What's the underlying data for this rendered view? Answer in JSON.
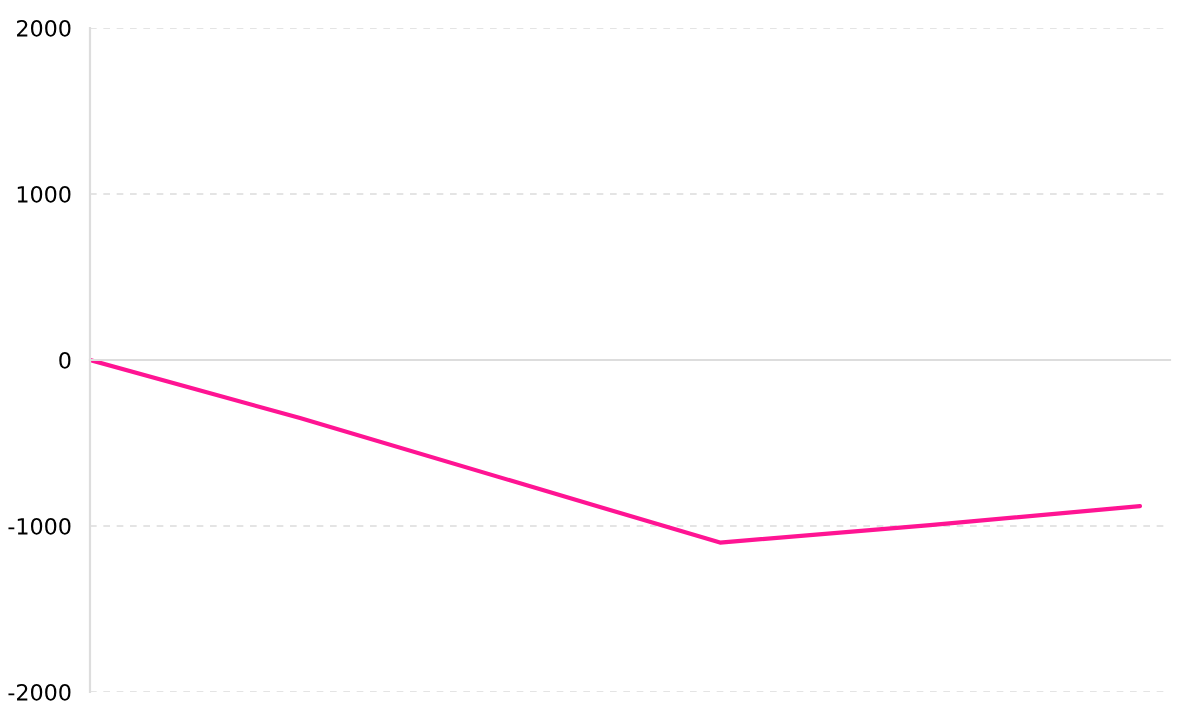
{
  "chart_data": {
    "type": "line",
    "categories": [
      null,
      null,
      null,
      null,
      null,
      null
    ],
    "series": [
      {
        "color": "#ff1493",
        "values": [
          0,
          -350,
          -725,
          -1100,
          -995,
          -880
        ]
      }
    ],
    "ylim": [
      -2000,
      2000
    ],
    "yticks": [
      -2000,
      -1000,
      0,
      1000,
      2000
    ],
    "tick_labels": "y",
    "grid": "y"
  }
}
